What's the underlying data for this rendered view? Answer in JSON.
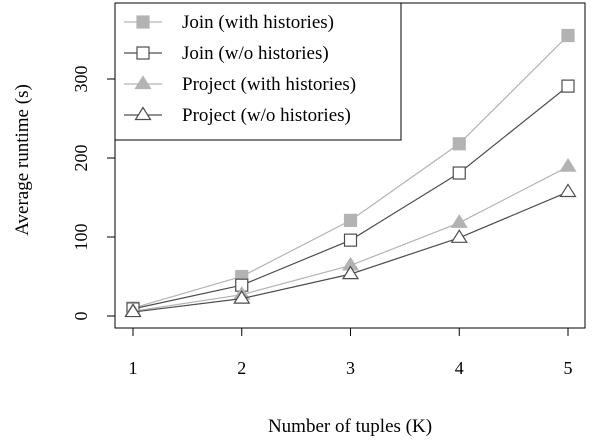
{
  "chart_data": {
    "type": "line",
    "xlabel": "Number of tuples (K)",
    "ylabel": "Average runtime (s)",
    "x": [
      1,
      2,
      3,
      4,
      5
    ],
    "xlim": [
      1,
      5
    ],
    "ylim": [
      0,
      355
    ],
    "xticks": [
      "1",
      "2",
      "3",
      "4",
      "5"
    ],
    "yticks": [
      "0",
      "100",
      "200",
      "300"
    ],
    "grid": false,
    "legend_position": "top-left",
    "series": [
      {
        "name": "Join (with histories)",
        "values": [
          10,
          50,
          121,
          218,
          355
        ],
        "color": "#b3b3b3",
        "marker": "filled-square"
      },
      {
        "name": "Join (w/o histories)",
        "values": [
          9,
          39,
          96,
          181,
          291
        ],
        "color": "#4d4d4d",
        "marker": "open-square"
      },
      {
        "name": "Project (with histories)",
        "values": [
          6,
          27,
          64,
          118,
          189
        ],
        "color": "#b3b3b3",
        "marker": "filled-triangle"
      },
      {
        "name": "Project (w/o histories)",
        "values": [
          5,
          22,
          53,
          99,
          157
        ],
        "color": "#4d4d4d",
        "marker": "open-triangle"
      }
    ]
  }
}
